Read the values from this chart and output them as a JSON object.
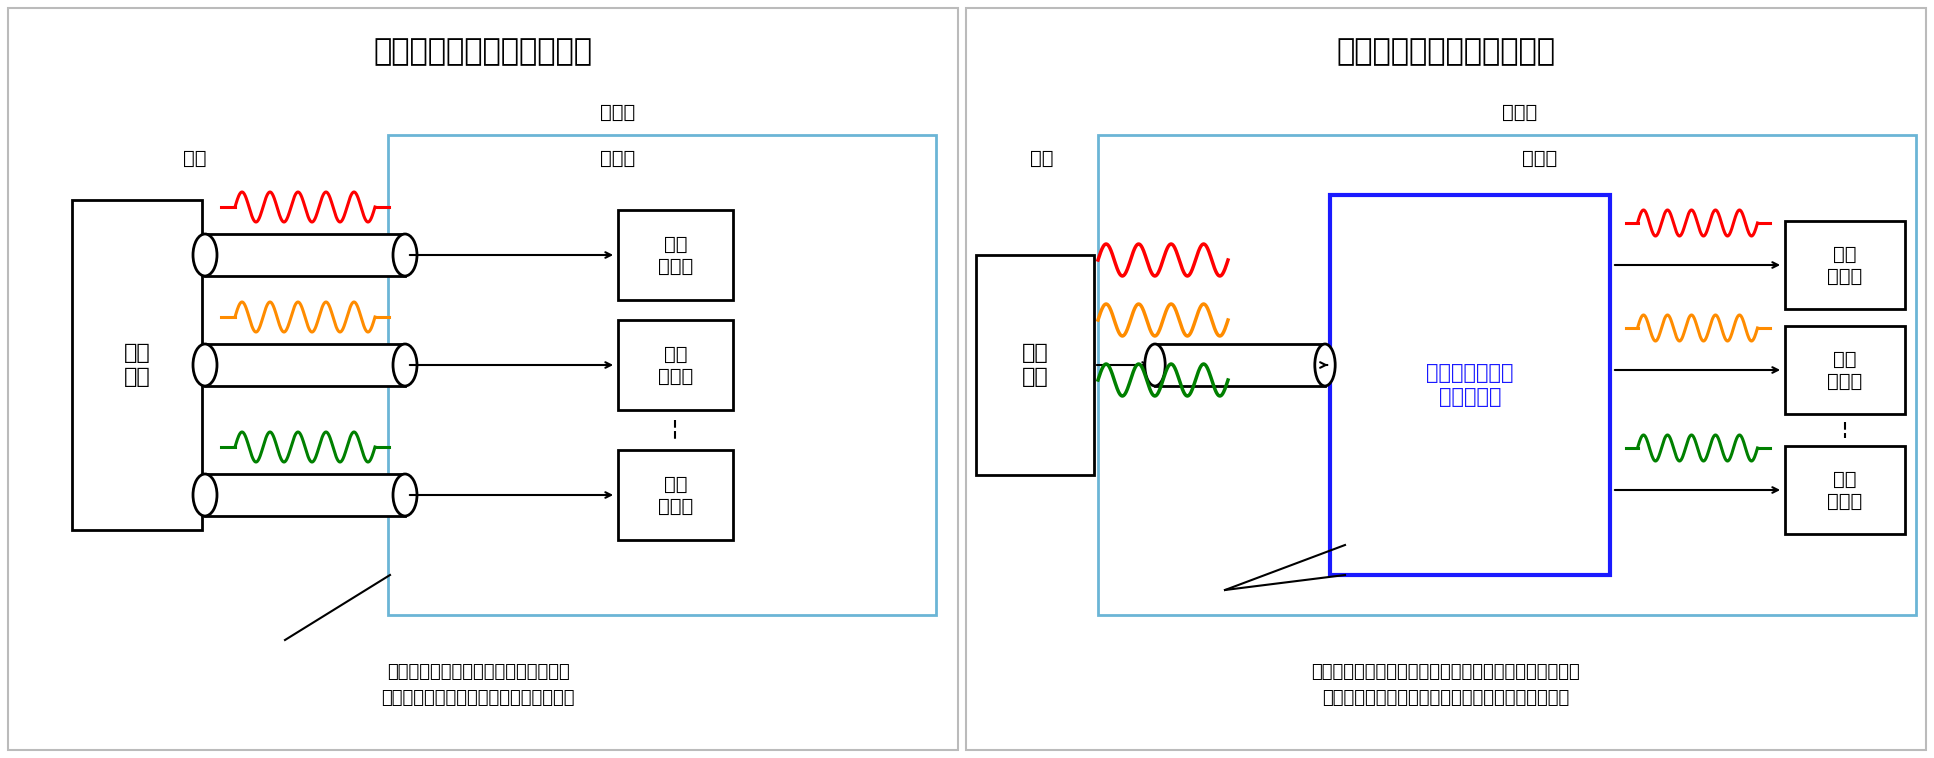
{
  "fig_width": 19.34,
  "fig_height": 7.58,
  "background_color": "#ffffff",
  "left_title": "従来の量子ビット制御方法",
  "right_title": "本研究で提案した制御方法",
  "wave_colors": [
    "#ff0000",
    "#ff8c00",
    "#008000"
  ],
  "left_caption_line1": "量子ビット制御信号を伝送するため、",
  "left_caption_line2": "室温と極低温間に大量のケーブルが必要",
  "right_caption_line1": "マイクロ波の多重化を用いる量子ビット制御超伝導回路",
  "right_caption_line2": "により、室温と極低温間のケーブル数を大幅に削減",
  "label_reito": "冷凍機",
  "label_goku": "極低温",
  "label_shitsu": "室温",
  "label_seigyo": "制御\n装置",
  "label_qubit": "量子\nビット",
  "label_circuit": "量子ビット制御\n超伝導回路"
}
